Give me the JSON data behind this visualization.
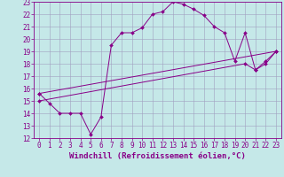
{
  "xlabel": "Windchill (Refroidissement éolien,°C)",
  "xlim": [
    -0.5,
    23.5
  ],
  "ylim": [
    12,
    23
  ],
  "xticks": [
    0,
    1,
    2,
    3,
    4,
    5,
    6,
    7,
    8,
    9,
    10,
    11,
    12,
    13,
    14,
    15,
    16,
    17,
    18,
    19,
    20,
    21,
    22,
    23
  ],
  "yticks": [
    12,
    13,
    14,
    15,
    16,
    17,
    18,
    19,
    20,
    21,
    22,
    23
  ],
  "bg_color": "#c5e8e8",
  "line_color": "#880088",
  "grid_color": "#a0a0c0",
  "line1_x": [
    0,
    1,
    2,
    3,
    4,
    5,
    6,
    7,
    8,
    9,
    10,
    11,
    12,
    13,
    14,
    15,
    16,
    17,
    18,
    19,
    20,
    21,
    22,
    23
  ],
  "line1_y": [
    15.6,
    14.8,
    14.0,
    14.0,
    14.0,
    12.3,
    13.7,
    19.5,
    20.5,
    20.5,
    20.9,
    22.0,
    22.2,
    23.0,
    22.8,
    22.4,
    21.9,
    21.0,
    20.5,
    18.2,
    20.5,
    17.5,
    18.0,
    19.0
  ],
  "line2_x": [
    0,
    23
  ],
  "line2_y": [
    15.6,
    19.0
  ],
  "line3_x": [
    0,
    20,
    21,
    22,
    23
  ],
  "line3_y": [
    15.0,
    18.0,
    17.5,
    18.2,
    19.0
  ],
  "fontsize_tick": 5.5,
  "fontsize_label": 6.5,
  "marker": "D",
  "markersize": 2.0,
  "linewidth": 0.7
}
